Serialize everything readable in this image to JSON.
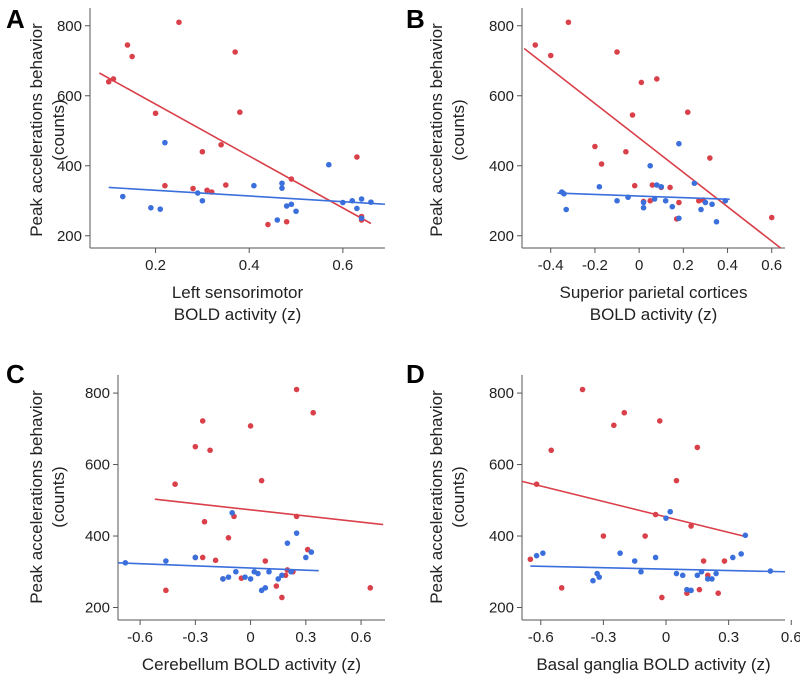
{
  "colors": {
    "red": "#d9404a",
    "blue": "#3a6fdc"
  },
  "chart_data": [
    {
      "type": "scatter",
      "letter": "A",
      "title": "",
      "xlabel_lines": [
        "Left sensorimotor",
        "BOLD activity (z)"
      ],
      "ylabel_lines": [
        "Peak accelerations behavior",
        "(counts)"
      ],
      "xlim": [
        0.06,
        0.69
      ],
      "ylim": [
        165,
        845
      ],
      "xticks": [
        0.2,
        0.4,
        0.6
      ],
      "xtick_labels": [
        "0.2",
        "0.4",
        "0.6"
      ],
      "yticks": [
        200,
        400,
        600,
        800
      ],
      "ytick_labels": [
        "200",
        "400",
        "600",
        "800"
      ],
      "series": [
        {
          "name": "red",
          "color": "red",
          "points": [
            [
              0.1,
              640
            ],
            [
              0.11,
              648
            ],
            [
              0.14,
              745
            ],
            [
              0.15,
              712
            ],
            [
              0.2,
              550
            ],
            [
              0.22,
              343
            ],
            [
              0.25,
              810
            ],
            [
              0.28,
              335
            ],
            [
              0.3,
              440
            ],
            [
              0.31,
              330
            ],
            [
              0.32,
              325
            ],
            [
              0.34,
              460
            ],
            [
              0.35,
              345
            ],
            [
              0.37,
              725
            ],
            [
              0.38,
              553
            ],
            [
              0.44,
              232
            ],
            [
              0.48,
              240
            ],
            [
              0.49,
              362
            ],
            [
              0.63,
              425
            ],
            [
              0.64,
              255
            ],
            [
              0.64,
              245
            ]
          ],
          "fit": [
            [
              0.08,
              665
            ],
            [
              0.66,
              235
            ]
          ]
        },
        {
          "name": "blue",
          "color": "blue",
          "points": [
            [
              0.13,
              312
            ],
            [
              0.19,
              280
            ],
            [
              0.21,
              276
            ],
            [
              0.22,
              466
            ],
            [
              0.29,
              322
            ],
            [
              0.3,
              300
            ],
            [
              0.41,
              343
            ],
            [
              0.46,
              245
            ],
            [
              0.47,
              336
            ],
            [
              0.47,
              350
            ],
            [
              0.48,
              285
            ],
            [
              0.49,
              290
            ],
            [
              0.5,
              270
            ],
            [
              0.57,
              403
            ],
            [
              0.6,
              295
            ],
            [
              0.62,
              300
            ],
            [
              0.63,
              278
            ],
            [
              0.64,
              305
            ],
            [
              0.64,
              250
            ],
            [
              0.66,
              296
            ]
          ],
          "fit": [
            [
              0.1,
              338
            ],
            [
              0.69,
              290
            ]
          ]
        }
      ]
    },
    {
      "type": "scatter",
      "letter": "B",
      "title": "",
      "xlabel_lines": [
        "Superior parietal cortices",
        "BOLD activity (z)"
      ],
      "ylabel_lines": [
        "Peak accelerations behavior",
        "(counts)"
      ],
      "xlim": [
        -0.53,
        0.66
      ],
      "ylim": [
        165,
        845
      ],
      "xticks": [
        -0.4,
        -0.2,
        0,
        0.2,
        0.4,
        0.6
      ],
      "xtick_labels": [
        "-0.4",
        "-0.2",
        "0",
        "0.2",
        "0.4",
        "0.6"
      ],
      "yticks": [
        200,
        400,
        600,
        800
      ],
      "ytick_labels": [
        "200",
        "400",
        "600",
        "800"
      ],
      "series": [
        {
          "name": "red",
          "color": "red",
          "points": [
            [
              -0.47,
              745
            ],
            [
              -0.4,
              715
            ],
            [
              -0.32,
              810
            ],
            [
              -0.2,
              455
            ],
            [
              -0.17,
              405
            ],
            [
              -0.1,
              725
            ],
            [
              -0.06,
              440
            ],
            [
              -0.03,
              545
            ],
            [
              -0.02,
              343
            ],
            [
              0.01,
              638
            ],
            [
              0.02,
              298
            ],
            [
              0.05,
              300
            ],
            [
              0.06,
              345
            ],
            [
              0.08,
              648
            ],
            [
              0.1,
              338
            ],
            [
              0.14,
              338
            ],
            [
              0.17,
              248
            ],
            [
              0.22,
              553
            ],
            [
              0.27,
              300
            ],
            [
              0.29,
              302
            ],
            [
              0.32,
              422
            ],
            [
              0.6,
              252
            ],
            [
              0.18,
              295
            ]
          ],
          "fit": [
            [
              -0.52,
              735
            ],
            [
              0.64,
              165
            ]
          ]
        },
        {
          "name": "blue",
          "color": "blue",
          "points": [
            [
              -0.35,
              325
            ],
            [
              -0.34,
              320
            ],
            [
              -0.33,
              275
            ],
            [
              -0.18,
              340
            ],
            [
              -0.1,
              300
            ],
            [
              -0.05,
              310
            ],
            [
              0.02,
              295
            ],
            [
              0.02,
              280
            ],
            [
              0.05,
              400
            ],
            [
              0.07,
              305
            ],
            [
              0.08,
              345
            ],
            [
              0.1,
              340
            ],
            [
              0.12,
              300
            ],
            [
              0.15,
              283
            ],
            [
              0.18,
              250
            ],
            [
              0.18,
              463
            ],
            [
              0.25,
              350
            ],
            [
              0.28,
              275
            ],
            [
              0.3,
              295
            ],
            [
              0.33,
              290
            ],
            [
              0.35,
              240
            ],
            [
              0.39,
              300
            ]
          ],
          "fit": [
            [
              -0.37,
              322
            ],
            [
              0.41,
              304
            ]
          ]
        }
      ]
    },
    {
      "type": "scatter",
      "letter": "C",
      "title": "",
      "xlabel_lines": [
        "Cerebellum BOLD activity (z)"
      ],
      "ylabel_lines": [
        "Peak accelerations behavior",
        "(counts)"
      ],
      "xlim": [
        -0.72,
        0.73
      ],
      "ylim": [
        165,
        845
      ],
      "xticks": [
        -0.6,
        -0.3,
        0,
        0.3,
        0.6
      ],
      "xtick_labels": [
        "-0.6",
        "-0.3",
        "0",
        "0.3",
        "0.6"
      ],
      "yticks": [
        200,
        400,
        600,
        800
      ],
      "ytick_labels": [
        "200",
        "400",
        "600",
        "800"
      ],
      "series": [
        {
          "name": "red",
          "color": "red",
          "points": [
            [
              -0.46,
              248
            ],
            [
              -0.41,
              545
            ],
            [
              -0.3,
              650
            ],
            [
              -0.26,
              722
            ],
            [
              -0.25,
              440
            ],
            [
              -0.22,
              640
            ],
            [
              -0.15,
              280
            ],
            [
              -0.12,
              395
            ],
            [
              -0.09,
              455
            ],
            [
              -0.05,
              282
            ],
            [
              0.0,
              708
            ],
            [
              0.06,
              555
            ],
            [
              0.08,
              330
            ],
            [
              0.14,
              260
            ],
            [
              0.17,
              228
            ],
            [
              0.19,
              290
            ],
            [
              0.2,
              305
            ],
            [
              0.25,
              810
            ],
            [
              0.25,
              455
            ],
            [
              0.31,
              362
            ],
            [
              0.34,
              745
            ],
            [
              0.65,
              255
            ],
            [
              -0.3,
              340
            ],
            [
              -0.26,
              340
            ],
            [
              -0.19,
              332
            ],
            [
              0.23,
              300
            ]
          ],
          "fit": [
            [
              -0.52,
              503
            ],
            [
              0.72,
              432
            ]
          ]
        },
        {
          "name": "blue",
          "color": "blue",
          "points": [
            [
              -0.68,
              325
            ],
            [
              -0.46,
              330
            ],
            [
              -0.3,
              340
            ],
            [
              -0.15,
              280
            ],
            [
              -0.1,
              465
            ],
            [
              -0.08,
              300
            ],
            [
              -0.03,
              285
            ],
            [
              0.0,
              280
            ],
            [
              0.02,
              300
            ],
            [
              0.04,
              295
            ],
            [
              0.06,
              248
            ],
            [
              0.08,
              255
            ],
            [
              0.1,
              300
            ],
            [
              0.15,
              280
            ],
            [
              0.17,
              290
            ],
            [
              0.2,
              380
            ],
            [
              0.22,
              300
            ],
            [
              0.25,
              408
            ],
            [
              0.3,
              340
            ],
            [
              0.33,
              355
            ],
            [
              -0.12,
              285
            ]
          ],
          "fit": [
            [
              -0.72,
              325
            ],
            [
              0.37,
              303
            ]
          ]
        }
      ]
    },
    {
      "type": "scatter",
      "letter": "D",
      "title": "",
      "xlabel_lines": [
        "Basal ganglia BOLD activity (z)"
      ],
      "ylabel_lines": [
        "Peak accelerations behavior",
        "(counts)"
      ],
      "xlim": [
        -0.69,
        0.57
      ],
      "ylim": [
        165,
        845
      ],
      "xticks": [
        -0.6,
        -0.3,
        0,
        0.3,
        0.6
      ],
      "xtick_labels": [
        "-0.6",
        "-0.3",
        "0",
        "0.3",
        "0.6"
      ],
      "yticks": [
        200,
        400,
        600,
        800
      ],
      "ytick_labels": [
        "200",
        "400",
        "600",
        "800"
      ],
      "series": [
        {
          "name": "red",
          "color": "red",
          "points": [
            [
              -0.65,
              335
            ],
            [
              -0.62,
              545
            ],
            [
              -0.55,
              640
            ],
            [
              -0.5,
              255
            ],
            [
              -0.4,
              810
            ],
            [
              -0.3,
              400
            ],
            [
              -0.25,
              710
            ],
            [
              -0.2,
              745
            ],
            [
              -0.1,
              400
            ],
            [
              -0.05,
              460
            ],
            [
              -0.03,
              722
            ],
            [
              -0.02,
              228
            ],
            [
              0.05,
              555
            ],
            [
              0.1,
              240
            ],
            [
              0.12,
              428
            ],
            [
              0.15,
              648
            ],
            [
              0.16,
              250
            ],
            [
              0.18,
              330
            ],
            [
              0.2,
              290
            ],
            [
              0.25,
              240
            ],
            [
              0.28,
              330
            ]
          ],
          "fit": [
            [
              -0.69,
              553
            ],
            [
              0.37,
              400
            ]
          ]
        },
        {
          "name": "blue",
          "color": "blue",
          "points": [
            [
              -0.62,
              345
            ],
            [
              -0.59,
              352
            ],
            [
              -0.35,
              275
            ],
            [
              -0.33,
              295
            ],
            [
              -0.32,
              285
            ],
            [
              -0.22,
              352
            ],
            [
              -0.15,
              330
            ],
            [
              -0.12,
              300
            ],
            [
              -0.05,
              340
            ],
            [
              0.0,
              450
            ],
            [
              0.02,
              468
            ],
            [
              0.05,
              295
            ],
            [
              0.08,
              290
            ],
            [
              0.1,
              250
            ],
            [
              0.12,
              248
            ],
            [
              0.15,
              290
            ],
            [
              0.17,
              300
            ],
            [
              0.2,
              280
            ],
            [
              0.22,
              280
            ],
            [
              0.24,
              295
            ],
            [
              0.32,
              340
            ],
            [
              0.36,
              350
            ],
            [
              0.38,
              402
            ],
            [
              0.5,
              302
            ]
          ],
          "fit": [
            [
              -0.65,
              316
            ],
            [
              0.57,
              300
            ]
          ]
        }
      ]
    }
  ]
}
